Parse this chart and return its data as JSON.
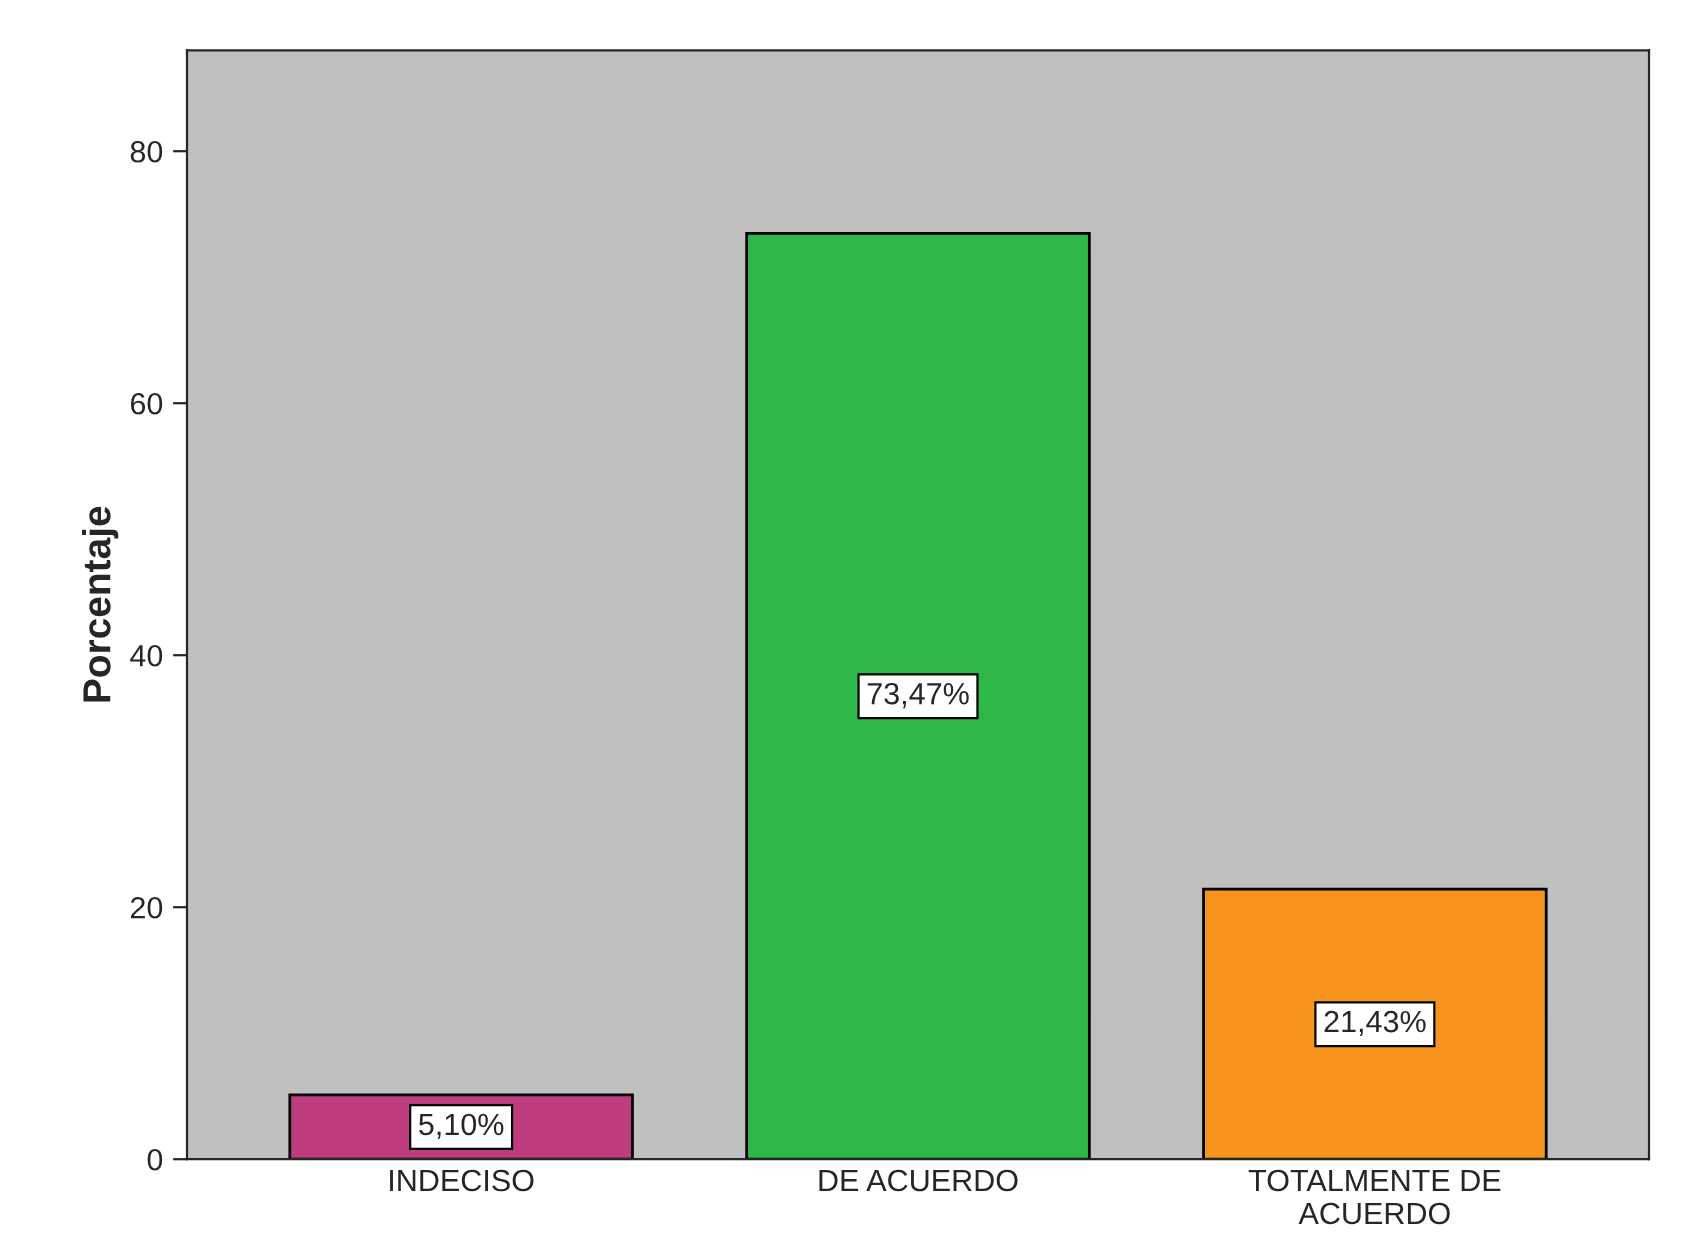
{
  "chart_data": {
    "type": "bar",
    "ylabel": "Porcentaje",
    "categories": [
      "INDECISO",
      "DE ACUERDO",
      "TOTALMENTE DE\nACUERDO"
    ],
    "values": [
      5.1,
      73.47,
      21.43
    ],
    "colors": [
      "#be3d7e",
      "#2eb84a",
      "#f7941d"
    ],
    "value_labels": [
      "5,10%",
      "73,47%",
      "21,43%"
    ],
    "ylim": [
      0,
      88
    ],
    "yticks": [
      0,
      20,
      40,
      60,
      80
    ],
    "grid": false,
    "legend": false
  }
}
